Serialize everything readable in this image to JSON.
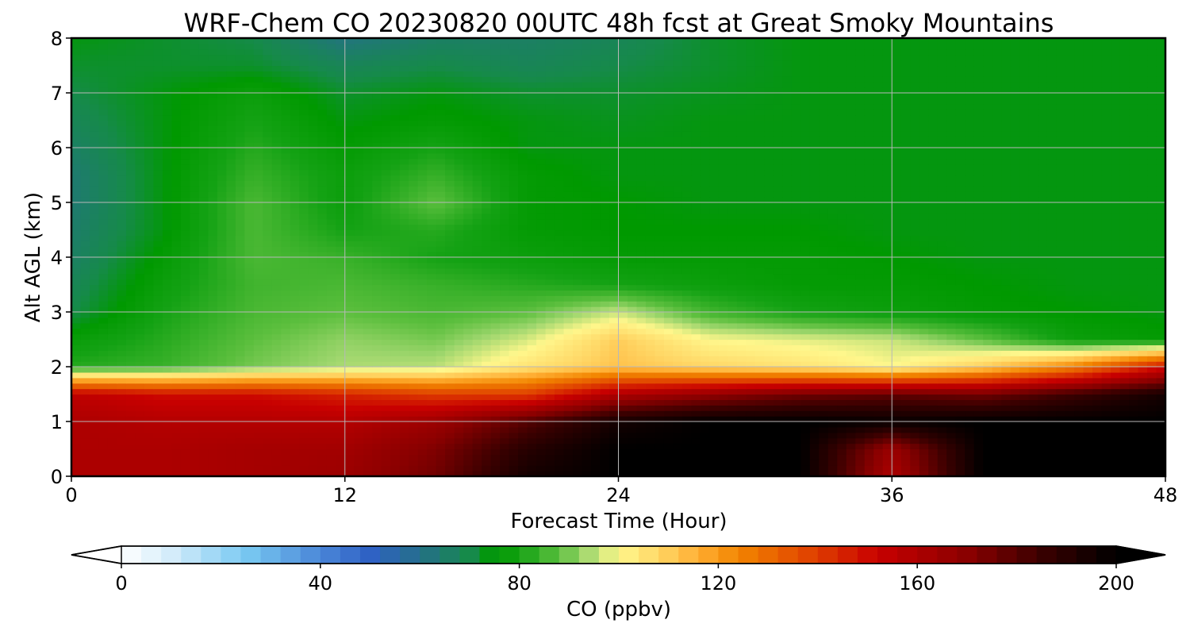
{
  "chart_data": {
    "type": "heatmap",
    "title": "WRF-Chem CO  20230820 00UTC 48h fcst at Great Smoky Mountains",
    "xlabel": "Forecast Time (Hour)",
    "ylabel": "Alt AGL (km)",
    "xlim": [
      0,
      48
    ],
    "ylim": [
      0,
      8
    ],
    "xticks": [
      0,
      12,
      24,
      36,
      48
    ],
    "yticks": [
      0,
      1,
      2,
      3,
      4,
      5,
      6,
      7,
      8
    ],
    "grid": true,
    "x": [
      0,
      4,
      8,
      12,
      16,
      20,
      24,
      28,
      32,
      36,
      40,
      44,
      48
    ],
    "y": [
      0,
      0.5,
      1,
      1.5,
      2,
      2.5,
      3,
      3.5,
      4,
      4.5,
      5,
      5.5,
      6,
      6.5,
      7,
      7.5,
      8
    ],
    "z": [
      [
        160,
        160,
        162,
        165,
        175,
        195,
        200,
        200,
        200,
        160,
        200,
        200,
        200
      ],
      [
        160,
        160,
        162,
        163,
        172,
        190,
        200,
        200,
        200,
        165,
        200,
        200,
        200
      ],
      [
        160,
        158,
        158,
        158,
        165,
        180,
        195,
        200,
        200,
        198,
        200,
        200,
        200
      ],
      [
        155,
        150,
        150,
        145,
        140,
        140,
        160,
        168,
        175,
        178,
        175,
        185,
        195
      ],
      [
        82,
        84,
        90,
        94,
        95,
        105,
        112,
        108,
        105,
        100,
        110,
        125,
        150
      ],
      [
        77,
        82,
        88,
        92,
        90,
        97,
        110,
        100,
        98,
        96,
        88,
        78,
        76
      ],
      [
        70,
        80,
        86,
        88,
        86,
        88,
        96,
        85,
        80,
        78,
        76,
        75,
        74
      ],
      [
        68,
        78,
        85,
        86,
        84,
        82,
        80,
        78,
        76,
        76,
        75,
        74,
        74
      ],
      [
        66,
        76,
        86,
        84,
        80,
        78,
        76,
        76,
        76,
        75,
        74,
        74,
        74
      ],
      [
        65,
        74,
        86,
        80,
        82,
        76,
        75,
        75,
        75,
        74,
        74,
        74,
        74
      ],
      [
        64,
        74,
        86,
        78,
        88,
        76,
        75,
        74,
        74,
        74,
        74,
        74,
        74
      ],
      [
        64,
        74,
        84,
        78,
        84,
        76,
        74,
        74,
        74,
        74,
        74,
        74,
        74
      ],
      [
        66,
        74,
        82,
        76,
        80,
        74,
        74,
        74,
        74,
        74,
        74,
        74,
        74
      ],
      [
        68,
        74,
        80,
        74,
        76,
        74,
        73,
        74,
        74,
        74,
        74,
        74,
        74
      ],
      [
        70,
        74,
        78,
        72,
        74,
        72,
        72,
        73,
        74,
        74,
        74,
        74,
        74
      ],
      [
        72,
        72,
        72,
        68,
        70,
        68,
        70,
        72,
        74,
        74,
        74,
        74,
        74
      ],
      [
        74,
        72,
        70,
        62,
        66,
        66,
        68,
        72,
        74,
        74,
        74,
        74,
        74
      ]
    ],
    "colorbar": {
      "label": "CO  (ppbv)",
      "range": [
        0,
        200
      ],
      "ticks": [
        0,
        40,
        80,
        120,
        160,
        200
      ],
      "extend": "both",
      "orientation": "horizontal"
    },
    "colormap": [
      [
        0,
        "#ffffff"
      ],
      [
        10,
        "#d4ecfa"
      ],
      [
        25,
        "#79c9f2"
      ],
      [
        40,
        "#4a86d8"
      ],
      [
        50,
        "#2f62c4"
      ],
      [
        60,
        "#256f8a"
      ],
      [
        70,
        "#168a4a"
      ],
      [
        75,
        "#009900"
      ],
      [
        80,
        "#14a214"
      ],
      [
        88,
        "#5cbf3e"
      ],
      [
        93,
        "#9ed66d"
      ],
      [
        100,
        "#fff78c"
      ],
      [
        108,
        "#ffd766"
      ],
      [
        116,
        "#ffae33"
      ],
      [
        124,
        "#f28500"
      ],
      [
        140,
        "#de3c00"
      ],
      [
        152,
        "#c80000"
      ],
      [
        170,
        "#8a0000"
      ],
      [
        185,
        "#3a0000"
      ],
      [
        200,
        "#000000"
      ]
    ]
  }
}
